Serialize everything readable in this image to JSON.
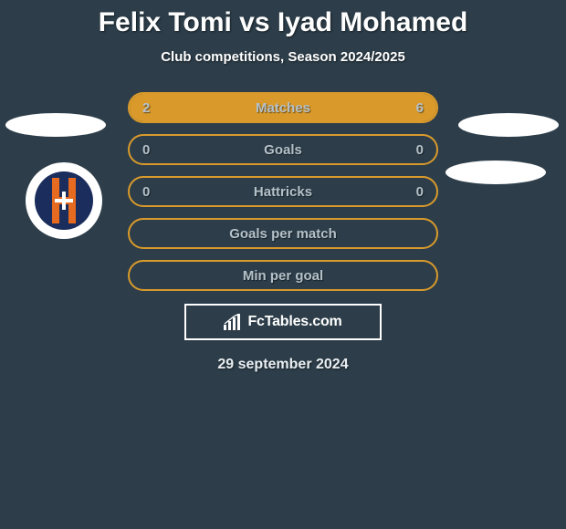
{
  "header": {
    "title": "Felix Tomi vs Iyad Mohamed",
    "subtitle": "Club competitions, Season 2024/2025"
  },
  "stats": {
    "border_color": "#d99a2b",
    "fill_color": "#d99a2b",
    "label_color": "#b5c1c9",
    "rows": [
      {
        "label": "Matches",
        "left": "2",
        "right": "6",
        "left_pct": 25,
        "right_pct": 75
      },
      {
        "label": "Goals",
        "left": "0",
        "right": "0",
        "left_pct": 0,
        "right_pct": 0
      },
      {
        "label": "Hattricks",
        "left": "0",
        "right": "0",
        "left_pct": 0,
        "right_pct": 0
      },
      {
        "label": "Goals per match",
        "left": "",
        "right": "",
        "left_pct": 0,
        "right_pct": 0
      },
      {
        "label": "Min per goal",
        "left": "",
        "right": "",
        "left_pct": 0,
        "right_pct": 0
      }
    ]
  },
  "attribution": {
    "text": "FcTables.com"
  },
  "date": "29 september 2024",
  "colors": {
    "background": "#2d3e4a",
    "text_white": "#ffffff",
    "ellipse": "#ffffff",
    "badge_bg": "#ffffff",
    "badge_inner": "#1a2d5c",
    "badge_orange": "#e66a1f"
  }
}
